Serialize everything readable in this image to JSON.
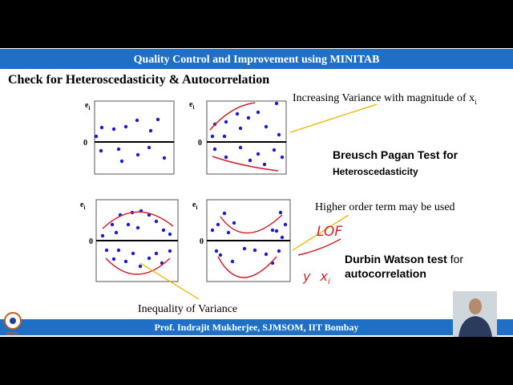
{
  "header": {
    "title": "Quality Control and Improvement using MINITAB"
  },
  "heading": "Check for Heteroscedasticity & Autocorrelation",
  "plots": [
    {
      "y_label": {
        "text": "e",
        "sub": "i"
      },
      "zero": "0"
    },
    {
      "y_label": {
        "text": "e",
        "sub": "i"
      },
      "zero": "0"
    },
    {
      "y_label": {
        "text": "e",
        "sub": "i"
      },
      "zero": "0"
    },
    {
      "y_label": {
        "text": "e",
        "sub": "i"
      },
      "zero": "0"
    }
  ],
  "annotations": {
    "increasing_variance": {
      "text": "Increasing Variance with magnitude of x",
      "sub": "i"
    },
    "breusch_pagan": {
      "line1": "Breusch Pagan Test for",
      "line2": "Heteroscedasticity"
    },
    "higher_order": "Higher order term may be used",
    "handwritten_lof": "LOF",
    "durbin_watson": {
      "bold": "Durbin Watson test",
      "rest": " for",
      "line2": "autocorrelation"
    },
    "handwritten_yx": {
      "y": "y",
      "x": "x",
      "sub": "i"
    },
    "inequality": "Inequality of Variance"
  },
  "footer": {
    "text": "Prof. Indrajit Mukherjee, SJMSOM, IIT Bombay",
    "logo": "NPTEL"
  }
}
